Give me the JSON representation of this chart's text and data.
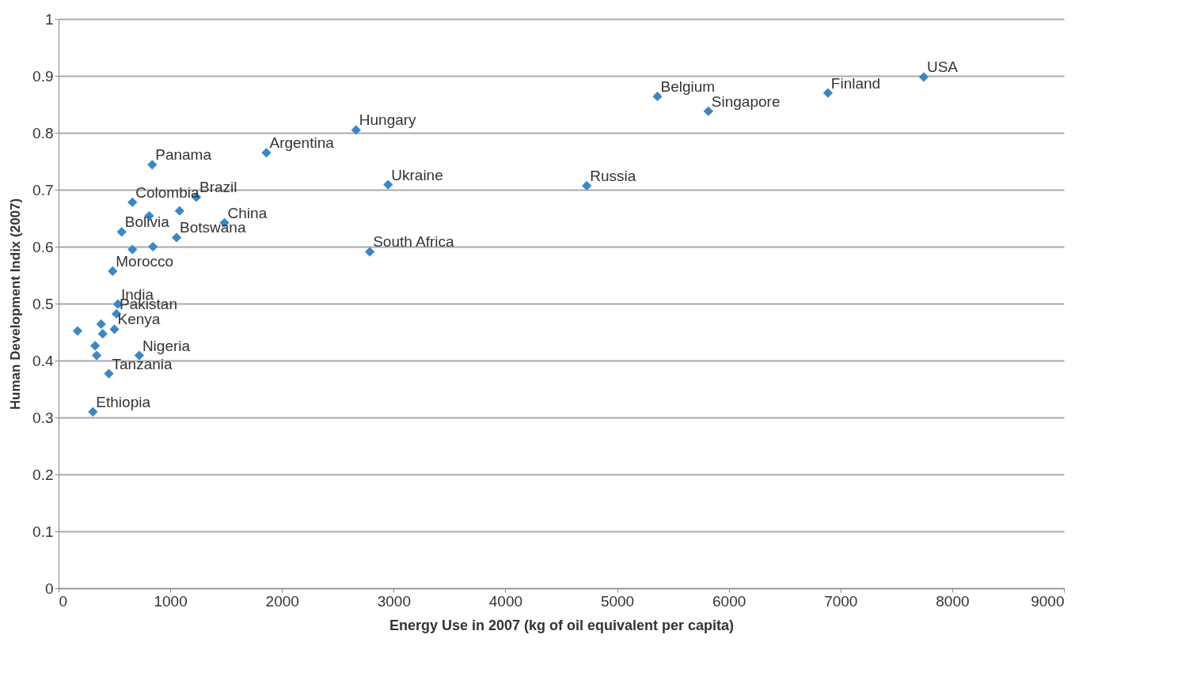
{
  "chart_data": {
    "type": "scatter",
    "xlabel": "Energy Use in 2007 (kg of oil equivalent per capita)",
    "ylabel": "Human Development Indix (2007)",
    "xlim": [
      0,
      9000
    ],
    "xticks": [
      0,
      1000,
      2000,
      3000,
      4000,
      5000,
      6000,
      7000,
      8000,
      9000
    ],
    "ylim": [
      0,
      1
    ],
    "yticks": [
      0,
      0.1,
      0.2,
      0.3,
      0.4,
      0.5,
      0.6,
      0.7,
      0.8,
      0.9,
      1
    ],
    "grid": "y",
    "marker": "diamond",
    "series": [
      {
        "color": "#3a87c8",
        "x": [
          7745,
          6887,
          5817,
          5361,
          4728,
          2663,
          2950,
          2786,
          1860,
          838,
          661,
          1233,
          1083,
          811,
          1485,
          565,
          1056,
          661,
          845,
          484,
          531,
          518,
          500,
          170,
          381,
          395,
          327,
          341,
          722,
          450,
          307
        ],
        "values": [
          0.898,
          0.87,
          0.838,
          0.864,
          0.707,
          0.805,
          0.709,
          0.591,
          0.765,
          0.744,
          0.678,
          0.687,
          0.663,
          0.654,
          0.642,
          0.626,
          0.616,
          0.595,
          0.6,
          0.557,
          0.499,
          0.482,
          0.455,
          0.452,
          0.464,
          0.447,
          0.426,
          0.409,
          0.409,
          0.377,
          0.31
        ],
        "value_labels": [
          "USA",
          "Finland",
          "Singapore",
          "Belgium",
          "Russia",
          "Hungary",
          "Ukraine",
          "South Africa",
          "Argentina",
          "Panama",
          "Colombia",
          "Brazil",
          null,
          null,
          "China",
          "Bolivia",
          "Botswana",
          null,
          null,
          "Morocco",
          "India",
          "Pakistan",
          "Kenya",
          null,
          null,
          null,
          null,
          null,
          "Nigeria",
          "Tanzania",
          "Ethiopia"
        ]
      }
    ]
  }
}
